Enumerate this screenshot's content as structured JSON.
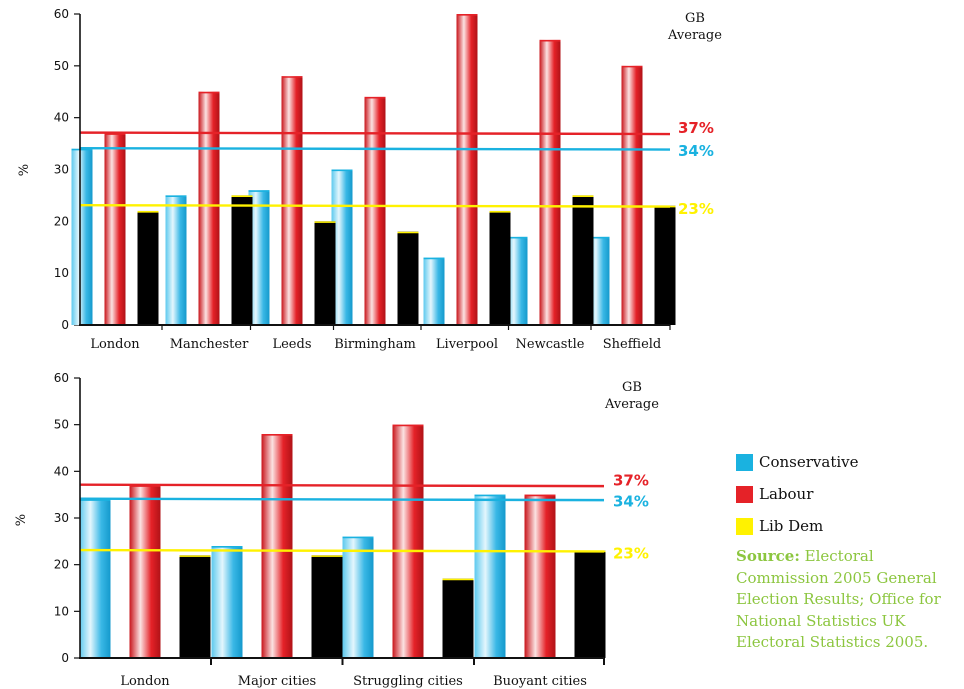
{
  "chart_data": [
    {
      "type": "bar",
      "ylabel": "%",
      "ylim": [
        0,
        60
      ],
      "yticks": [
        0,
        10,
        20,
        30,
        40,
        50,
        60
      ],
      "categories": [
        "London",
        "Manchester",
        "Leeds",
        "Birmingham",
        "Liverpool",
        "Newcastle",
        "Sheffield"
      ],
      "series": [
        {
          "name": "Conservative",
          "values": [
            34,
            25,
            26,
            30,
            13,
            17,
            17
          ]
        },
        {
          "name": "Labour",
          "values": [
            37,
            45,
            48,
            44,
            60,
            55,
            50
          ]
        },
        {
          "name": "Lib Dem",
          "values": [
            22,
            25,
            20,
            18,
            22,
            25,
            23
          ]
        }
      ],
      "reference_lines_title": "GB Average",
      "reference_lines": [
        {
          "series": "Labour",
          "value": 37,
          "label": "37%"
        },
        {
          "series": "Conservative",
          "value": 34,
          "label": "34%"
        },
        {
          "series": "Lib Dem",
          "value": 23,
          "label": "23%"
        }
      ]
    },
    {
      "type": "bar",
      "ylabel": "%",
      "ylim": [
        0,
        60
      ],
      "yticks": [
        0,
        10,
        20,
        30,
        40,
        50,
        60
      ],
      "categories": [
        "London",
        "Major cities",
        "Struggling cities",
        "Buoyant cities"
      ],
      "series": [
        {
          "name": "Conservative",
          "values": [
            34,
            24,
            26,
            35
          ]
        },
        {
          "name": "Labour",
          "values": [
            37,
            48,
            50,
            35
          ]
        },
        {
          "name": "Lib Dem",
          "values": [
            22,
            22,
            17,
            23
          ]
        }
      ],
      "reference_lines_title": "GB Average",
      "reference_lines": [
        {
          "series": "Labour",
          "value": 37,
          "label": "37%"
        },
        {
          "series": "Conservative",
          "value": 34,
          "label": "34%"
        },
        {
          "series": "Lib Dem",
          "value": 23,
          "label": "23%"
        }
      ]
    }
  ],
  "legend": {
    "items": [
      {
        "label": "Conservative",
        "color": "#1ab2e0"
      },
      {
        "label": "Labour",
        "color": "#e52228"
      },
      {
        "label": "Lib Dem",
        "color": "#fff200"
      }
    ]
  },
  "source": {
    "prefix": "Source:",
    "text": " Electoral Commission 2005 General Election Results; Office for National Statistics UK Electoral Statistics 2005."
  },
  "colors": {
    "Conservative": "#1ab2e0",
    "Labour": "#e52228",
    "Lib Dem": "#fff200",
    "source_text": "#8cc63f"
  }
}
